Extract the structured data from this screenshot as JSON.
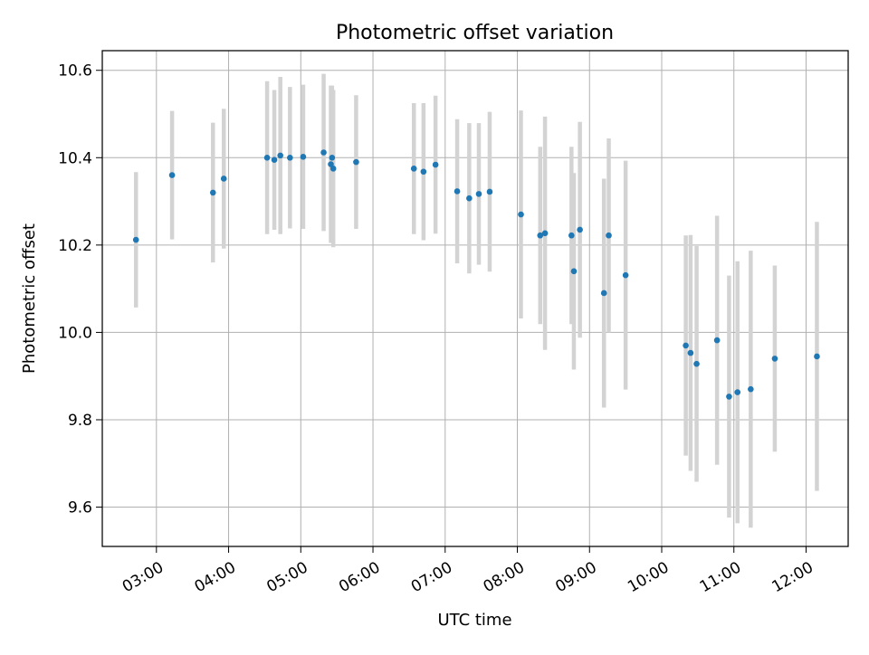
{
  "chart_data": {
    "type": "scatter",
    "title": "Photometric offset variation",
    "xlabel": "UTC time",
    "ylabel": "Photometric offset",
    "xlim": [
      "02:15",
      "12:35"
    ],
    "ylim": [
      9.51,
      10.645
    ],
    "x_ticks": [
      "03:00",
      "04:00",
      "05:00",
      "06:00",
      "07:00",
      "08:00",
      "09:00",
      "10:00",
      "11:00",
      "12:00"
    ],
    "y_ticks": [
      "9.6",
      "9.8",
      "10.0",
      "10.2",
      "10.4",
      "10.6"
    ],
    "grid": true,
    "marker_color": "#1f77b4",
    "errorbar_color": "#d3d3d3",
    "points": [
      {
        "t": "02:43",
        "y": 10.212,
        "err": 0.155
      },
      {
        "t": "03:13",
        "y": 10.36,
        "err": 0.147
      },
      {
        "t": "03:47",
        "y": 10.32,
        "err": 0.16
      },
      {
        "t": "03:56",
        "y": 10.352,
        "err": 0.16
      },
      {
        "t": "04:32",
        "y": 10.4,
        "err": 0.175
      },
      {
        "t": "04:38",
        "y": 10.395,
        "err": 0.16
      },
      {
        "t": "04:43",
        "y": 10.405,
        "err": 0.18
      },
      {
        "t": "04:51",
        "y": 10.4,
        "err": 0.162
      },
      {
        "t": "05:02",
        "y": 10.402,
        "err": 0.165
      },
      {
        "t": "05:19",
        "y": 10.412,
        "err": 0.18
      },
      {
        "t": "05:25",
        "y": 10.385,
        "err": 0.18
      },
      {
        "t": "05:26",
        "y": 10.4,
        "err": 0.165
      },
      {
        "t": "05:27",
        "y": 10.375,
        "err": 0.18
      },
      {
        "t": "05:46",
        "y": 10.39,
        "err": 0.153
      },
      {
        "t": "06:34",
        "y": 10.375,
        "err": 0.15
      },
      {
        "t": "06:42",
        "y": 10.368,
        "err": 0.157
      },
      {
        "t": "06:52",
        "y": 10.384,
        "err": 0.158
      },
      {
        "t": "07:10",
        "y": 10.323,
        "err": 0.165
      },
      {
        "t": "07:20",
        "y": 10.307,
        "err": 0.172
      },
      {
        "t": "07:28",
        "y": 10.317,
        "err": 0.162
      },
      {
        "t": "07:37",
        "y": 10.322,
        "err": 0.183
      },
      {
        "t": "08:03",
        "y": 10.27,
        "err": 0.238
      },
      {
        "t": "08:19",
        "y": 10.222,
        "err": 0.203
      },
      {
        "t": "08:23",
        "y": 10.227,
        "err": 0.267
      },
      {
        "t": "08:45",
        "y": 10.222,
        "err": 0.203
      },
      {
        "t": "08:47",
        "y": 10.14,
        "err": 0.225
      },
      {
        "t": "08:52",
        "y": 10.235,
        "err": 0.247
      },
      {
        "t": "09:12",
        "y": 10.09,
        "err": 0.262
      },
      {
        "t": "09:16",
        "y": 10.222,
        "err": 0.222
      },
      {
        "t": "09:30",
        "y": 10.131,
        "err": 0.262
      },
      {
        "t": "10:20",
        "y": 9.97,
        "err": 0.252
      },
      {
        "t": "10:24",
        "y": 9.953,
        "err": 0.27
      },
      {
        "t": "10:29",
        "y": 9.928,
        "err": 0.27
      },
      {
        "t": "10:46",
        "y": 9.982,
        "err": 0.285
      },
      {
        "t": "10:56",
        "y": 9.853,
        "err": 0.277
      },
      {
        "t": "11:03",
        "y": 9.863,
        "err": 0.3
      },
      {
        "t": "11:14",
        "y": 9.87,
        "err": 0.317
      },
      {
        "t": "11:34",
        "y": 9.94,
        "err": 0.213
      },
      {
        "t": "12:09",
        "y": 9.945,
        "err": 0.308
      }
    ]
  }
}
